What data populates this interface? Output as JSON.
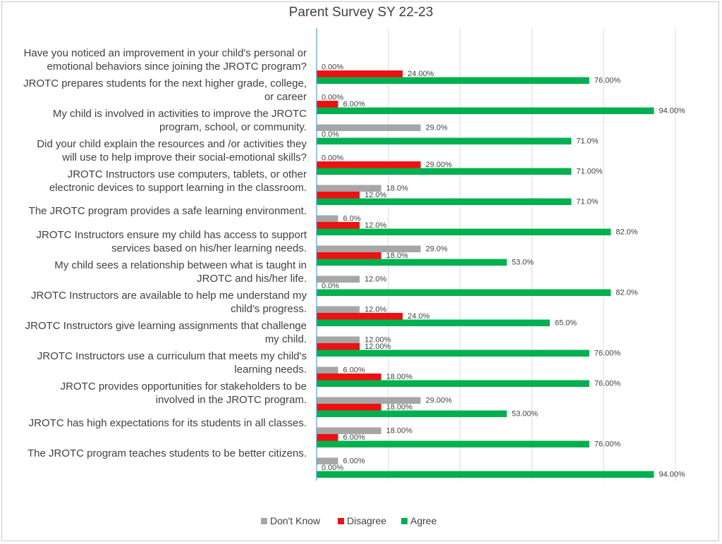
{
  "chart_data": {
    "type": "bar",
    "orientation": "horizontal",
    "title": "Parent Survey SY 22-23",
    "xlim": [
      0,
      100
    ],
    "grid": true,
    "legend_position": "bottom",
    "categories": [
      [
        "Have you noticed an improvement in your child's personal or",
        "emotional behaviors since joining the JROTC program?"
      ],
      [
        "JROTC prepares students for the next higher grade, college,",
        "or career"
      ],
      [
        "My child is involved in activities to improve the JROTC",
        "program, school, or community."
      ],
      [
        "Did your child explain the resources and /or activities they",
        "will use to help improve their social-emotional skills?"
      ],
      [
        "JROTC Instructors use computers, tablets, or other",
        "electronic devices to support learning in the classroom."
      ],
      [
        "The JROTC program provides a safe learning environment."
      ],
      [
        "JROTC Instructors ensure my child has access to support",
        "services based on his/her learning needs."
      ],
      [
        "My child sees a relationship between what is taught in",
        "JROTC and his/her life."
      ],
      [
        "JROTC Instructors are available to help me understand my",
        "child's progress."
      ],
      [
        "JROTC Instructors give learning assignments that challenge",
        "my child."
      ],
      [
        "JROTC Instructors use a curriculum that meets my child's",
        "learning needs."
      ],
      [
        "JROTC provides opportunities for stakeholders to be",
        "involved in the JROTC program."
      ],
      [
        "JROTC has high expectations for its students in all classes."
      ],
      [
        "The JROTC program teaches students to be better citizens."
      ]
    ],
    "series": [
      {
        "name": "Don't Know",
        "color": "#a6a6a6",
        "values": [
          0,
          0,
          29,
          0,
          18,
          6,
          29,
          12,
          12,
          12,
          6,
          29,
          18,
          6
        ],
        "labels": [
          "0.00%",
          "0.00%",
          "29.0%",
          "0.00%",
          "18.0%",
          "6.0%",
          "29.0%",
          "12.0%",
          "12.0%",
          "12.00%",
          "6.00%",
          "29.00%",
          "18.00%",
          "6.00%"
        ]
      },
      {
        "name": "Disagree",
        "color": "#ee1111",
        "values": [
          24,
          6,
          0,
          29,
          12,
          12,
          18,
          0,
          24,
          12,
          18,
          18,
          6,
          0
        ],
        "labels": [
          "24.00%",
          "6.00%",
          "0.0%",
          "29.00%",
          "12.0%",
          "12.0%",
          "18.0%",
          "0.0%",
          "24.0%",
          "12.00%",
          "18.00%",
          "18.00%",
          "6.00%",
          "0.00%"
        ]
      },
      {
        "name": "Agree",
        "color": "#00b050",
        "values": [
          76,
          94,
          71,
          71,
          71,
          82,
          53,
          82,
          65,
          76,
          76,
          53,
          76,
          94
        ],
        "labels": [
          "76.00%",
          "94.00%",
          "71.0%",
          "71.00%",
          "71.0%",
          "82.0%",
          "53.0%",
          "82.0%",
          "65.0%",
          "76.00%",
          "76.00%",
          "53.00%",
          "76.00%",
          "94.00%"
        ]
      }
    ]
  }
}
